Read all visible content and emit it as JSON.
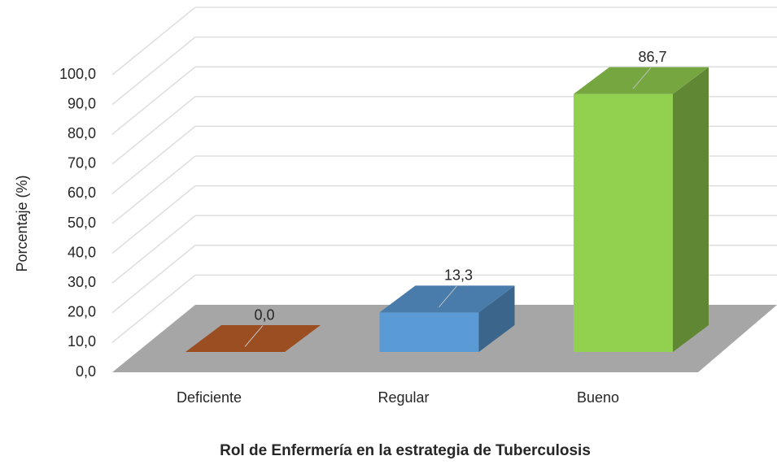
{
  "chart_data": {
    "type": "bar3d",
    "categories": [
      "Deficiente",
      "Regular",
      "Bueno"
    ],
    "values": [
      0,
      13.3,
      86.7
    ],
    "value_labels": [
      "0,0",
      "13,3",
      "86,7"
    ],
    "colors": [
      "#c0612b",
      "#5b9bd5",
      "#92d050"
    ],
    "y_label": "Porcentaje (%)",
    "x_label": "Rol de Enfermería en la estrategia de Tuberculosis",
    "ylim": [
      0,
      100
    ],
    "yticks": [
      {
        "value": 0,
        "label": "0,0"
      },
      {
        "value": 10,
        "label": "10,0"
      },
      {
        "value": 20,
        "label": "20,0"
      },
      {
        "value": 30,
        "label": "30,0"
      },
      {
        "value": 40,
        "label": "40,0"
      },
      {
        "value": 50,
        "label": "50,0"
      },
      {
        "value": 60,
        "label": "60,0"
      },
      {
        "value": 70,
        "label": "70,0"
      },
      {
        "value": 80,
        "label": "80,0"
      },
      {
        "value": 90,
        "label": "90,0"
      },
      {
        "value": 100,
        "label": "100,0"
      }
    ],
    "grid": true
  }
}
